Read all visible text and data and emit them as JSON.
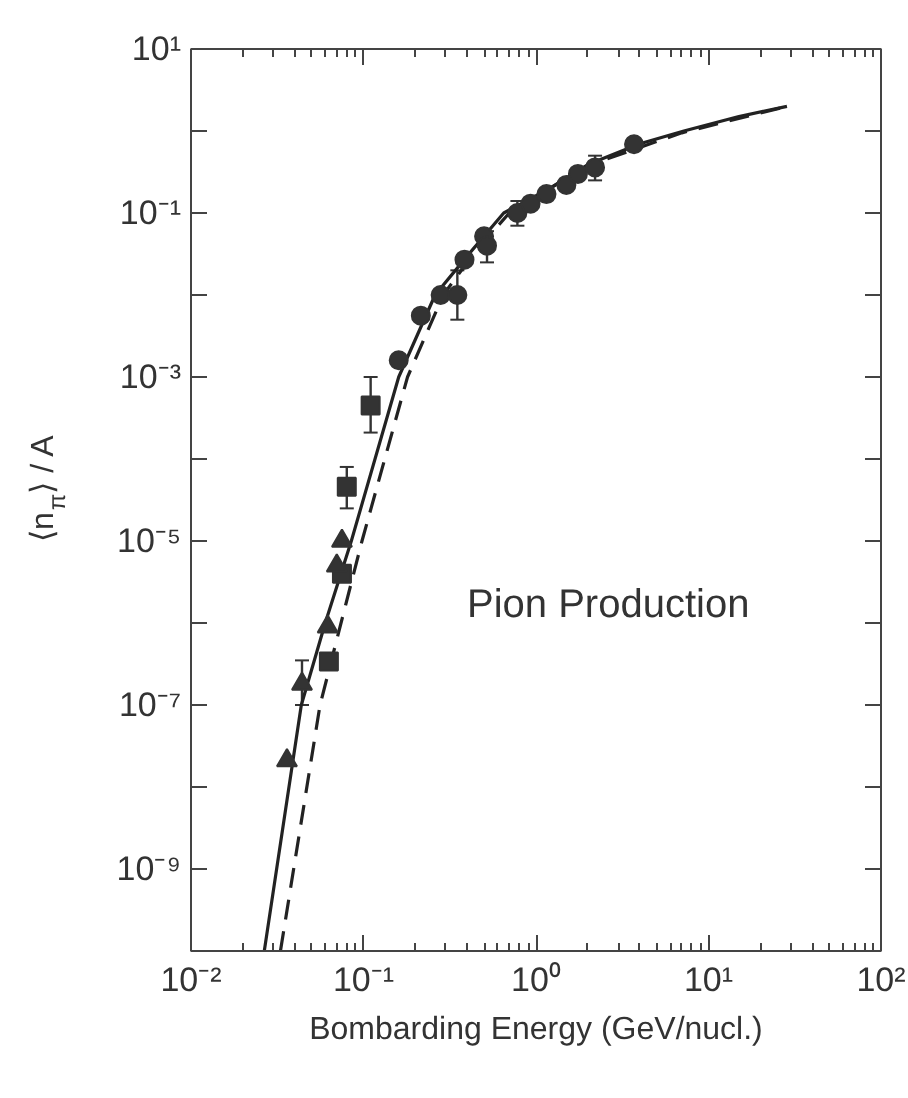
{
  "chart_data": {
    "type": "scatter",
    "xlabel": "Bombarding Energy (GeV/nucl.)",
    "ylabel": "⟨n$_{π}$⟩ / A",
    "annotations": [
      "Pion Production"
    ],
    "log": "xy",
    "grid": false,
    "xlim": [
      0.01,
      100
    ],
    "ylim": [
      1e-10,
      10
    ],
    "xticks": [
      {
        "value": 0.01,
        "label": "10⁻²"
      },
      {
        "value": 0.1,
        "label": "10⁻¹"
      },
      {
        "value": 1,
        "label": "10⁰"
      },
      {
        "value": 10,
        "label": "10¹"
      },
      {
        "value": 100,
        "label": "10²"
      }
    ],
    "yticks": [
      {
        "value": 1e-10,
        "label": null
      },
      {
        "value": 1e-09,
        "label": "10⁻⁹"
      },
      {
        "value": 1e-08,
        "label": null
      },
      {
        "value": 1e-07,
        "label": "10⁻⁷"
      },
      {
        "value": 1e-06,
        "label": null
      },
      {
        "value": 1e-05,
        "label": "10⁻⁵"
      },
      {
        "value": 0.0001,
        "label": null
      },
      {
        "value": 0.001,
        "label": "10⁻³"
      },
      {
        "value": 0.01,
        "label": null
      },
      {
        "value": 0.1,
        "label": "10⁻¹"
      },
      {
        "value": 1,
        "label": null
      },
      {
        "value": 10,
        "label": "10¹"
      }
    ],
    "series": [
      {
        "type": "line",
        "line_style": "solid",
        "marker": "none",
        "color": "#222222",
        "x": [
          0.0266,
          0.0436,
          0.06,
          0.085,
          0.16,
          0.26,
          0.4,
          0.65,
          1.2,
          2,
          4,
          7.2,
          15,
          28.5
        ],
        "values": [
          1e-10,
          1e-07,
          1e-06,
          1e-05,
          0.001,
          0.01,
          0.03,
          0.1,
          0.2,
          0.39,
          0.7,
          1,
          1.5,
          2
        ]
      },
      {
        "type": "line",
        "line_style": "dashed",
        "marker": "none",
        "color": "#222222",
        "x": [
          0.033,
          0.056,
          0.098,
          0.18,
          0.29,
          0.45,
          0.7,
          2,
          7,
          28.5
        ],
        "values": [
          1e-10,
          1e-07,
          1e-05,
          0.001,
          0.01,
          0.035,
          0.1,
          0.38,
          0.95,
          2
        ]
      },
      {
        "marker": "circle",
        "color": "#333333",
        "x": [
          0.16,
          0.215,
          0.28,
          0.35,
          0.385,
          0.5,
          0.52,
          0.78,
          0.93,
          1.15,
          1.5,
          1.75,
          2.2,
          3.7
        ],
        "values": [
          0.0016,
          0.0056,
          0.01,
          0.01,
          0.027,
          0.052,
          0.04,
          0.1,
          0.13,
          0.17,
          0.22,
          0.3,
          0.36,
          0.69
        ],
        "errors": [
          null,
          null,
          null,
          [
            0.005,
            0.02
          ],
          null,
          null,
          [
            0.025,
            0.06
          ],
          [
            0.07,
            0.14
          ],
          null,
          null,
          null,
          null,
          [
            0.25,
            0.5
          ],
          null
        ]
      },
      {
        "marker": "square",
        "color": "#333333",
        "x": [
          0.11,
          0.08,
          0.075,
          0.063
        ],
        "values": [
          0.00045,
          4.6e-05,
          4e-06,
          3.4e-07
        ],
        "errors": [
          [
            0.00021,
            0.001
          ],
          [
            2.5e-05,
            8e-05
          ],
          null,
          null
        ]
      },
      {
        "marker": "triangle",
        "color": "#333333",
        "x": [
          0.036,
          0.044,
          0.062,
          0.07,
          0.075
        ],
        "values": [
          2.1e-08,
          1.8e-07,
          9e-07,
          5e-06,
          1e-05
        ],
        "errors": [
          null,
          [
            1e-07,
            3.5e-07
          ],
          null,
          null,
          null
        ]
      }
    ]
  }
}
